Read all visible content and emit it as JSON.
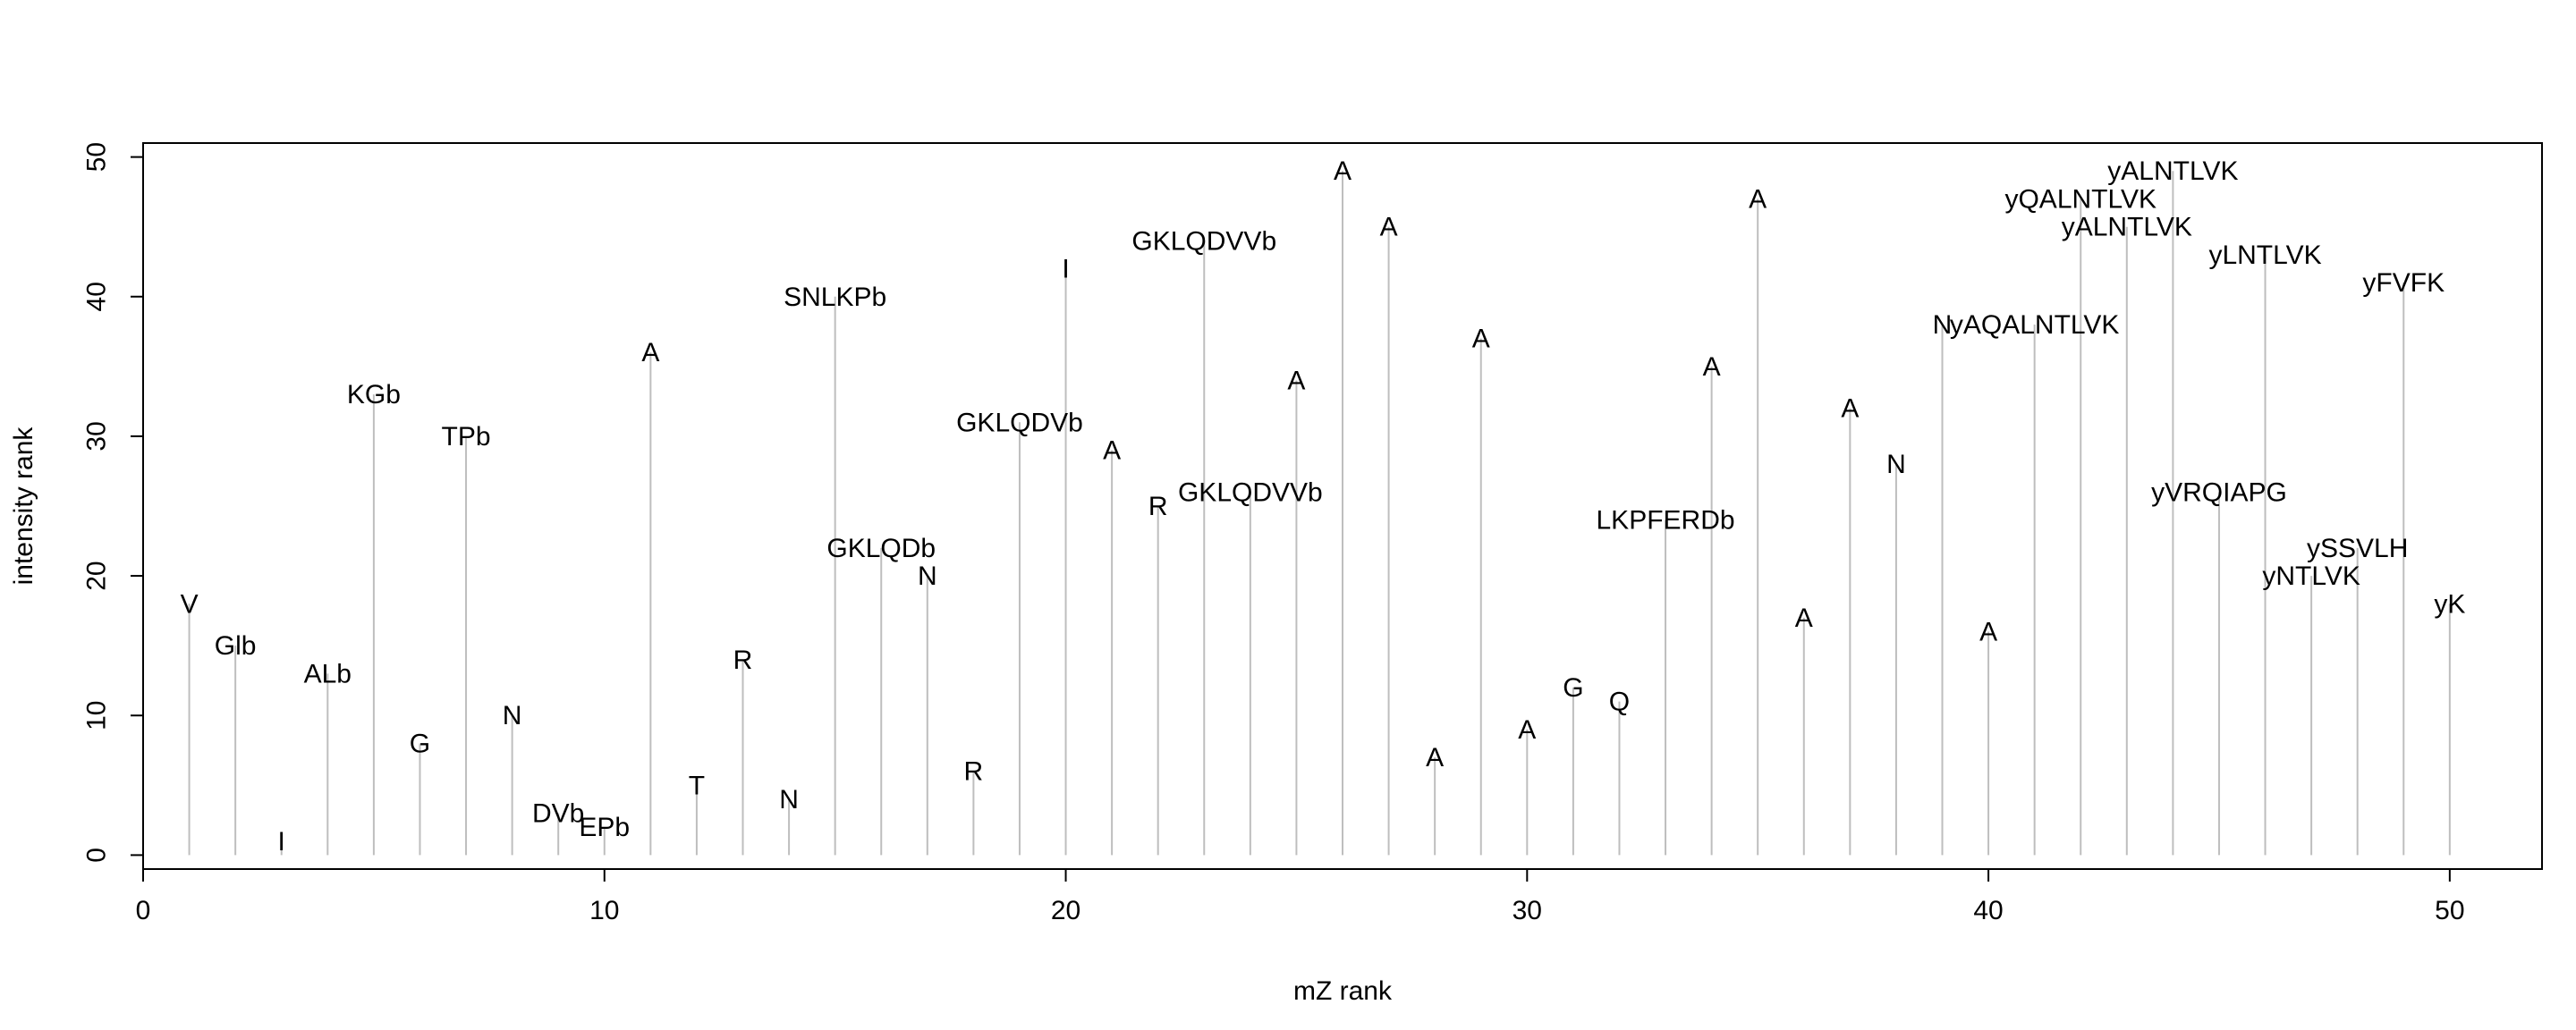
{
  "chart_data": {
    "type": "spike",
    "title": "",
    "xlabel": "mZ rank",
    "ylabel": "intensity rank",
    "xlim": [
      0,
      52
    ],
    "ylim": [
      -1,
      51
    ],
    "xticks": [
      0,
      10,
      20,
      30,
      40,
      50
    ],
    "yticks": [
      0,
      10,
      20,
      30,
      40,
      50
    ],
    "grid": false,
    "line_color": "#bebebe",
    "points": [
      {
        "x": 1,
        "y": 18,
        "label": "V"
      },
      {
        "x": 2,
        "y": 15,
        "label": "Glb"
      },
      {
        "x": 3,
        "y": 1,
        "label": "I"
      },
      {
        "x": 4,
        "y": 13,
        "label": "ALb"
      },
      {
        "x": 5,
        "y": 33,
        "label": "KGb"
      },
      {
        "x": 6,
        "y": 8,
        "label": "G"
      },
      {
        "x": 7,
        "y": 30,
        "label": "TPb"
      },
      {
        "x": 8,
        "y": 10,
        "label": "N"
      },
      {
        "x": 9,
        "y": 3,
        "label": "DVb"
      },
      {
        "x": 10,
        "y": 2,
        "label": "EPb"
      },
      {
        "x": 11,
        "y": 36,
        "label": "A"
      },
      {
        "x": 12,
        "y": 5,
        "label": "T"
      },
      {
        "x": 13,
        "y": 14,
        "label": "R"
      },
      {
        "x": 14,
        "y": 4,
        "label": "N"
      },
      {
        "x": 15,
        "y": 40,
        "label": "SNLKPb"
      },
      {
        "x": 16,
        "y": 22,
        "label": "GKLQDb"
      },
      {
        "x": 17,
        "y": 20,
        "label": "N"
      },
      {
        "x": 18,
        "y": 6,
        "label": "R"
      },
      {
        "x": 19,
        "y": 31,
        "label": "GKLQDVb"
      },
      {
        "x": 20,
        "y": 42,
        "label": "I"
      },
      {
        "x": 21,
        "y": 29,
        "label": "A"
      },
      {
        "x": 22,
        "y": 25,
        "label": "R"
      },
      {
        "x": 23,
        "y": 44,
        "label": "GKLQDVVb"
      },
      {
        "x": 24,
        "y": 26,
        "label": "GKLQDVVb"
      },
      {
        "x": 25,
        "y": 34,
        "label": "A"
      },
      {
        "x": 26,
        "y": 49,
        "label": "A"
      },
      {
        "x": 27,
        "y": 45,
        "label": "A"
      },
      {
        "x": 28,
        "y": 7,
        "label": "A"
      },
      {
        "x": 29,
        "y": 37,
        "label": "A"
      },
      {
        "x": 30,
        "y": 9,
        "label": "A"
      },
      {
        "x": 31,
        "y": 12,
        "label": "G"
      },
      {
        "x": 32,
        "y": 11,
        "label": "Q"
      },
      {
        "x": 33,
        "y": 24,
        "label": "LKPFERDb"
      },
      {
        "x": 34,
        "y": 35,
        "label": "A"
      },
      {
        "x": 35,
        "y": 47,
        "label": "A"
      },
      {
        "x": 36,
        "y": 17,
        "label": "A"
      },
      {
        "x": 37,
        "y": 32,
        "label": "A"
      },
      {
        "x": 38,
        "y": 28,
        "label": "N"
      },
      {
        "x": 39,
        "y": 38,
        "label": "N"
      },
      {
        "x": 40,
        "y": 16,
        "label": "A"
      },
      {
        "x": 41,
        "y": 38,
        "label": "yAQALNTLVK"
      },
      {
        "x": 42,
        "y": 47,
        "label": "yQALNTLVK"
      },
      {
        "x": 43,
        "y": 45,
        "label": "yALNTLVK"
      },
      {
        "x": 44,
        "y": 49,
        "label": "yALNTLVK"
      },
      {
        "x": 45,
        "y": 26,
        "label": "yVRQIAPG"
      },
      {
        "x": 46,
        "y": 43,
        "label": "yLNTLVK"
      },
      {
        "x": 47,
        "y": 20,
        "label": "yNTLVK"
      },
      {
        "x": 48,
        "y": 22,
        "label": "ySSVLH"
      },
      {
        "x": 49,
        "y": 41,
        "label": "yFVFK"
      },
      {
        "x": 50,
        "y": 18,
        "label": "yK"
      }
    ]
  }
}
